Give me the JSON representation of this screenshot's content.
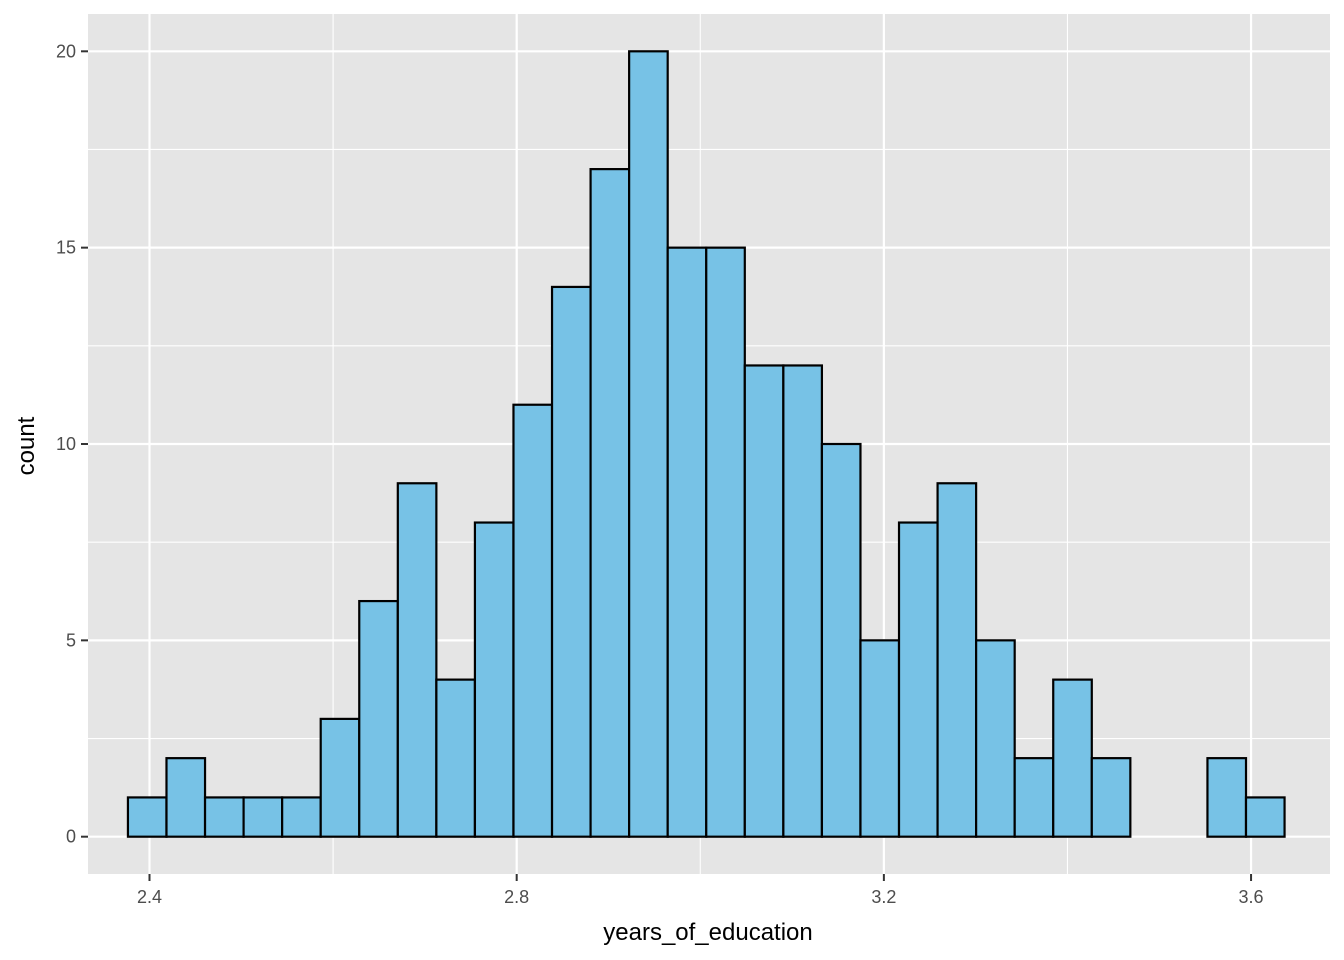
{
  "chart_data": {
    "type": "bar",
    "title": "",
    "xlabel": "years_of_education",
    "ylabel": "count",
    "xlim": [
      2.333,
      3.686
    ],
    "ylim": [
      -0.95,
      20.95
    ],
    "x_ticks": [
      2.4,
      2.8,
      3.2,
      3.6
    ],
    "x_tick_labels": [
      "2.4",
      "2.8",
      "3.2",
      "3.6"
    ],
    "x_minor_ticks": [
      2.6,
      3.0,
      3.4
    ],
    "y_ticks": [
      0,
      5,
      10,
      15,
      20
    ],
    "y_tick_labels": [
      "0",
      "5",
      "10",
      "15",
      "20"
    ],
    "y_minor_ticks": [
      2.5,
      7.5,
      12.5,
      17.5
    ],
    "bin_start": 2.3765,
    "bin_width": 0.042,
    "values": [
      1,
      2,
      1,
      1,
      1,
      3,
      6,
      9,
      4,
      8,
      11,
      14,
      17,
      20,
      15,
      15,
      12,
      12,
      10,
      5,
      8,
      9,
      5,
      2,
      4,
      2,
      0,
      0,
      2,
      1
    ],
    "grid": true,
    "legend": "none",
    "colors": {
      "bar_fill": "#77c2e6",
      "bar_outline": "#000000",
      "panel_background": "#e5e5e5",
      "grid": "#ffffff",
      "tick_label": "#4d4d4d",
      "axis_title": "#000000"
    }
  }
}
